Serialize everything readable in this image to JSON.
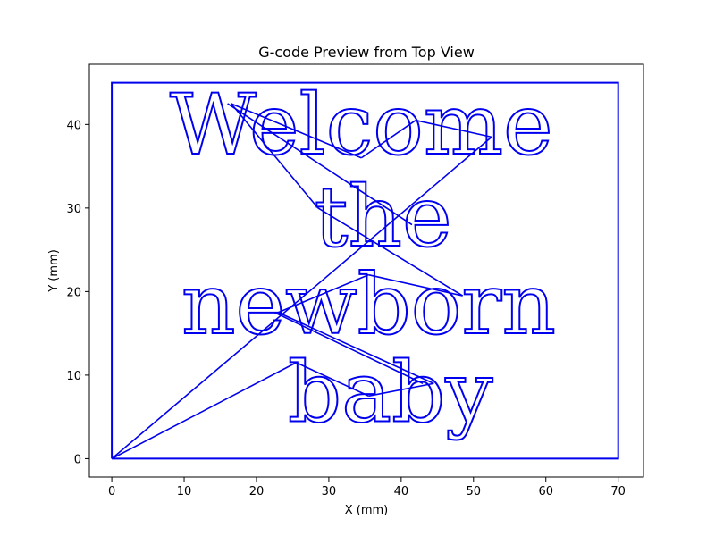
{
  "chart_data": {
    "type": "line",
    "title": "G-code Preview from Top View",
    "xlabel": "X (mm)",
    "ylabel": "Y (mm)",
    "xlim": [
      -3.1,
      73.5
    ],
    "ylim": [
      -2.2,
      47.2
    ],
    "xticks": [
      0,
      10,
      20,
      30,
      40,
      50,
      60,
      70
    ],
    "yticks": [
      0,
      10,
      20,
      30,
      40
    ],
    "grid": false,
    "line_color": "#0000ee",
    "series": [
      {
        "role": "border",
        "points": [
          [
            0,
            0
          ],
          [
            70,
            0
          ],
          [
            70,
            45
          ],
          [
            0,
            45
          ],
          [
            0,
            0
          ]
        ]
      },
      {
        "role": "travel-moves",
        "segments": [
          [
            [
              0,
              0
            ],
            [
              25.5,
              11.5
            ]
          ],
          [
            [
              25.5,
              11.5
            ],
            [
              35.5,
              7.5
            ]
          ],
          [
            [
              35.5,
              7.5
            ],
            [
              44.5,
              9
            ]
          ],
          [
            [
              44.5,
              9
            ],
            [
              23,
              17.5
            ]
          ],
          [
            [
              23,
              17.5
            ],
            [
              35.5,
              22
            ]
          ],
          [
            [
              35.5,
              22
            ],
            [
              48.5,
              19.5
            ]
          ],
          [
            [
              48.5,
              19.5
            ],
            [
              28.5,
              30
            ]
          ],
          [
            [
              28.5,
              30
            ],
            [
              16.5,
              42.5
            ]
          ],
          [
            [
              16.5,
              42.5
            ],
            [
              34.5,
              36
            ]
          ],
          [
            [
              34.5,
              36
            ],
            [
              42,
              40.5
            ]
          ],
          [
            [
              42,
              40.5
            ],
            [
              52.5,
              38.5
            ]
          ],
          [
            [
              52.5,
              38.5
            ],
            [
              0,
              0
            ]
          ],
          [
            [
              16,
              42.5
            ],
            [
              41.5,
              28
            ]
          ],
          [
            [
              22.5,
              17.5
            ],
            [
              43,
              9
            ]
          ]
        ]
      },
      {
        "role": "engraved-text",
        "lines": [
          {
            "text": "Welcome",
            "x_center": 34.5,
            "baseline_y": 36.5
          },
          {
            "text": "the",
            "x_center": 37.5,
            "baseline_y": 25.5
          },
          {
            "text": "newborn",
            "x_center": 35.5,
            "baseline_y": 15
          },
          {
            "text": "baby",
            "x_center": 38.5,
            "baseline_y": 4.5
          }
        ]
      }
    ]
  }
}
